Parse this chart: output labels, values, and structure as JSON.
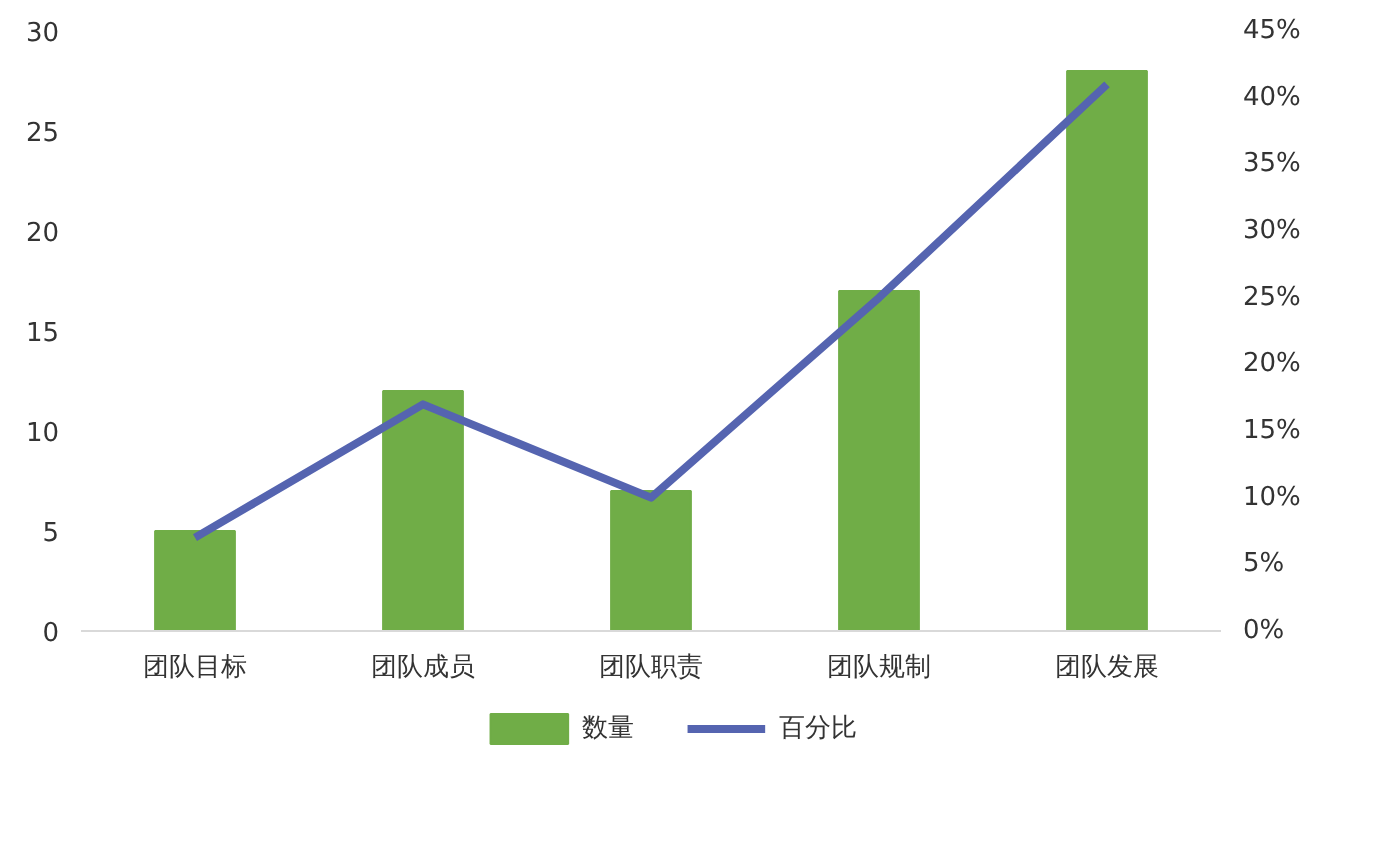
{
  "chart_data": {
    "type": "bar",
    "categories": [
      "团队目标",
      "团队成员",
      "团队职责",
      "团队规制",
      "团队发展"
    ],
    "series": [
      {
        "name": "数量",
        "color": "#70ad47",
        "values": [
          5,
          12,
          7,
          17,
          28
        ]
      },
      {
        "name": "百分比",
        "type": "line",
        "axis": "y2",
        "color": "#5564b0",
        "values": [
          7,
          17,
          10,
          25,
          41
        ]
      }
    ],
    "ylim": [
      0,
      30
    ],
    "yticks": [
      0,
      5,
      10,
      15,
      20,
      25,
      30
    ],
    "y2lim": [
      0,
      45
    ],
    "y2ticks": [
      {
        "value": 0,
        "label": "0%"
      },
      {
        "value": 5,
        "label": "5%"
      },
      {
        "value": 10,
        "label": "10%"
      },
      {
        "value": 15,
        "label": "15%"
      },
      {
        "value": 20,
        "label": "20%"
      },
      {
        "value": 25,
        "label": "25%"
      },
      {
        "value": 30,
        "label": "30%"
      },
      {
        "value": 35,
        "label": "35%"
      },
      {
        "value": 40,
        "label": "40%"
      },
      {
        "value": 45,
        "label": "45%"
      }
    ],
    "grid": false,
    "legend": "bottom"
  }
}
